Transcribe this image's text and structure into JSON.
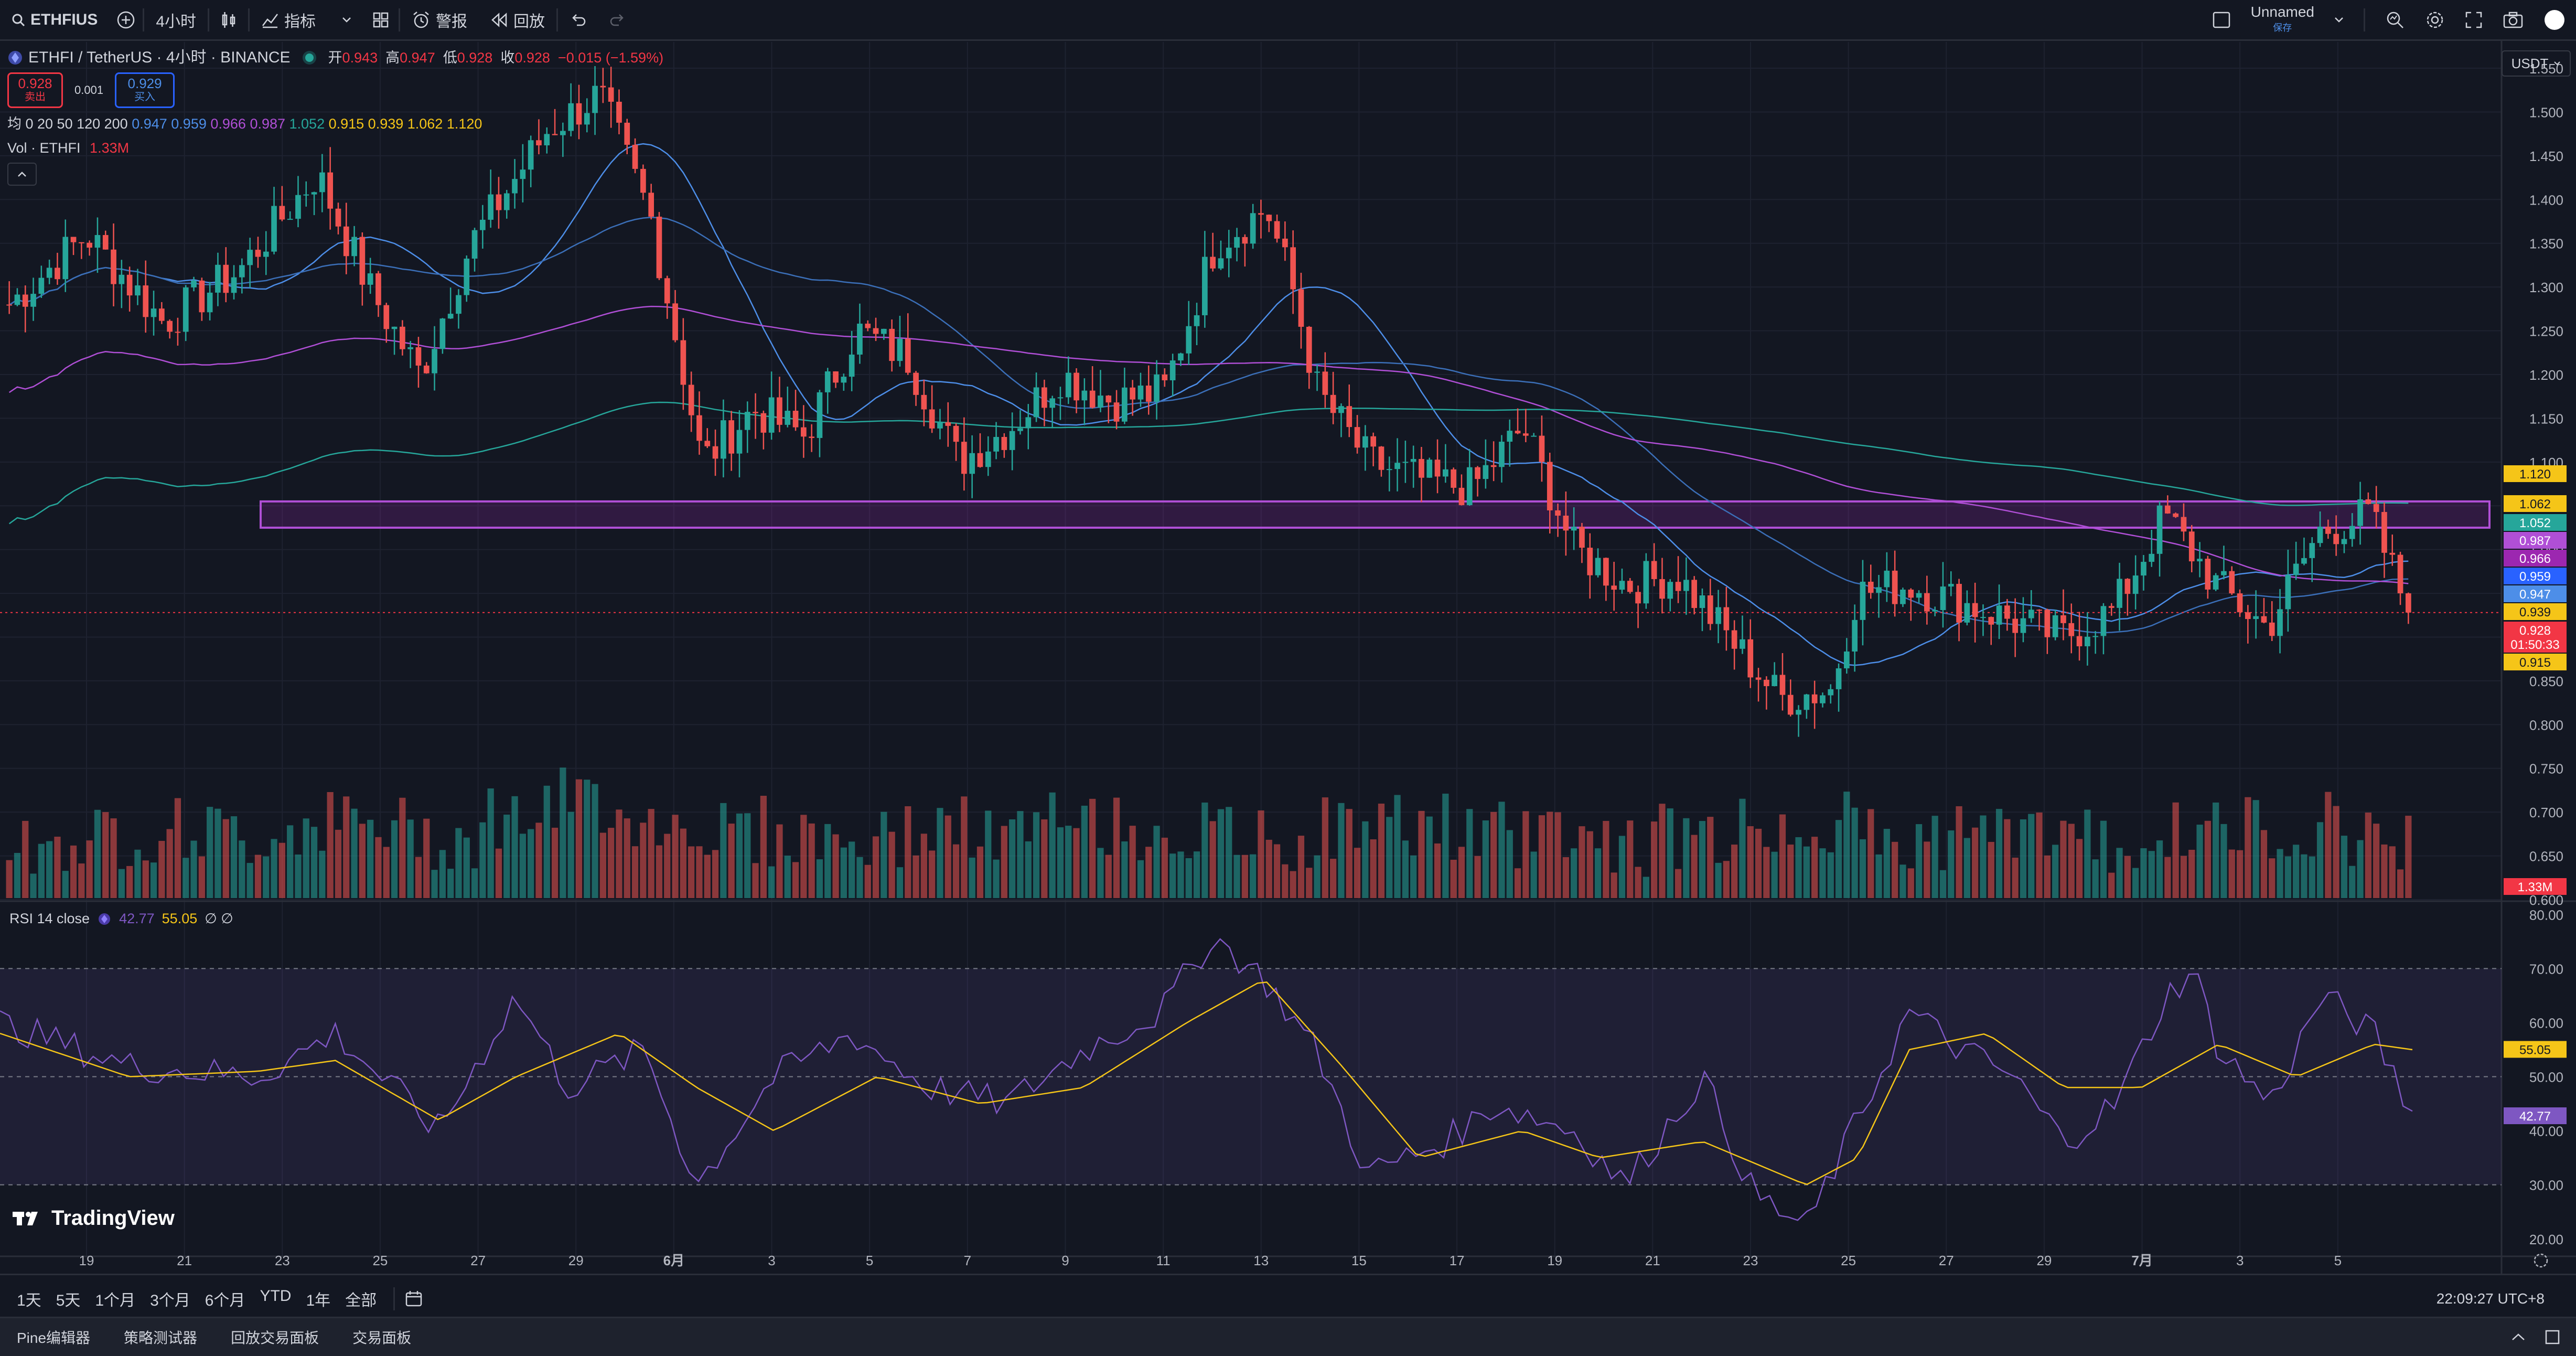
{
  "toolbar": {
    "symbol": "ETHFIUS",
    "interval": "4小时",
    "indicators_label": "指标",
    "alert_label": "警报",
    "replay_label": "回放",
    "layout_name": "Unnamed",
    "layout_sub": "保存"
  },
  "legend": {
    "title": "ETHFI / TetherUS · 4小时 · BINANCE",
    "open_label": "开",
    "open": "0.943",
    "high_label": "高",
    "high": "0.947",
    "low_label": "低",
    "low": "0.928",
    "close_label": "收",
    "close": "0.928",
    "change": "−0.015 (−1.59%)",
    "sell_price": "0.928",
    "sell_label": "卖出",
    "spread": "0.001",
    "buy_price": "0.929",
    "buy_label": "买入",
    "ma_label": "均 0 20 50 120 200",
    "ma_values": [
      "0.947",
      "0.959",
      "0.966",
      "0.987",
      "1.052",
      "0.915",
      "0.939",
      "1.062",
      "1.120"
    ],
    "ma_colors": [
      "#4d8ee8",
      "#4d8ee8",
      "#b04fd6",
      "#b04fd6",
      "#26a69a",
      "#f5c518",
      "#f5c518",
      "#f5c518",
      "#f5c518"
    ],
    "vol_label": "Vol · ETHFI",
    "vol_value": "1.33M"
  },
  "currency": "USDT",
  "rsi_legend": {
    "label": "RSI 14 close",
    "v1": "42.77",
    "v2": "55.05",
    "extra": "∅ ∅"
  },
  "watermark": "TradingView",
  "price_axis": {
    "ticks": [
      "1.550",
      "1.500",
      "1.450",
      "1.400",
      "1.350",
      "1.300",
      "1.250",
      "1.200",
      "1.150",
      "1.100",
      "1.050",
      "1.000",
      "0.950",
      "0.900",
      "0.850",
      "0.800",
      "0.750",
      "0.700",
      "0.650",
      "0.600"
    ],
    "tags": [
      {
        "text": "1.120",
        "bg": "#f5c518",
        "fg": "#131722"
      },
      {
        "text": "1.062",
        "bg": "#f5c518",
        "fg": "#131722"
      },
      {
        "text": "1.052",
        "bg": "#26a69a",
        "fg": "#ffffff"
      },
      {
        "text": "0.987",
        "bg": "#b04fd6",
        "fg": "#ffffff"
      },
      {
        "text": "0.966",
        "bg": "#9c27b0",
        "fg": "#ffffff"
      },
      {
        "text": "0.959",
        "bg": "#2962ff",
        "fg": "#ffffff"
      },
      {
        "text": "0.947",
        "bg": "#4d8ee8",
        "fg": "#ffffff"
      },
      {
        "text": "0.939",
        "bg": "#f5c518",
        "fg": "#131722"
      },
      {
        "text": "0.928",
        "bg": "#f23645",
        "fg": "#ffffff"
      },
      {
        "text": "01:50:33",
        "bg": "#f23645",
        "fg": "#ffffff"
      },
      {
        "text": "0.915",
        "bg": "#f5c518",
        "fg": "#131722"
      }
    ],
    "vol_tag": "1.33M"
  },
  "rsi_axis": {
    "ticks": [
      "80.00",
      "70.00",
      "60.00",
      "50.00",
      "40.00",
      "30.00",
      "20.00"
    ],
    "tag_yellow": "55.05",
    "tag_purple": "42.77"
  },
  "time_axis": [
    "19",
    "21",
    "23",
    "25",
    "27",
    "29",
    "6月",
    "3",
    "5",
    "7",
    "9",
    "11",
    "13",
    "15",
    "17",
    "19",
    "21",
    "23",
    "25",
    "27",
    "29",
    "7月",
    "3",
    "5"
  ],
  "ranges": [
    "1天",
    "5天",
    "1个月",
    "3个月",
    "6个月",
    "YTD",
    "1年",
    "全部"
  ],
  "clock": "22:09:27 UTC+8",
  "footer": [
    "Pine编辑器",
    "策略测试器",
    "回放交易面板",
    "交易面板"
  ],
  "chart_data": {
    "type": "candlestick",
    "title": "ETHFI / TetherUS · 4小时 · BINANCE",
    "xlabel": "",
    "ylabel": "",
    "ylim": [
      0.6,
      1.58
    ],
    "x_ticks": [
      "19",
      "21",
      "23",
      "25",
      "27",
      "29",
      "6月",
      "3",
      "5",
      "7",
      "9",
      "11",
      "13",
      "15",
      "17",
      "19",
      "21",
      "23",
      "25",
      "27",
      "29",
      "7月",
      "3",
      "5"
    ],
    "close_path": [
      [
        0,
        1.28
      ],
      [
        0.03,
        1.36
      ],
      [
        0.06,
        1.26
      ],
      [
        0.09,
        1.32
      ],
      [
        0.12,
        1.43
      ],
      [
        0.14,
        1.3
      ],
      [
        0.16,
        1.2
      ],
      [
        0.18,
        1.35
      ],
      [
        0.21,
        1.48
      ],
      [
        0.23,
        1.52
      ],
      [
        0.25,
        1.38
      ],
      [
        0.27,
        1.1
      ],
      [
        0.29,
        1.16
      ],
      [
        0.31,
        1.13
      ],
      [
        0.33,
        1.25
      ],
      [
        0.35,
        1.22
      ],
      [
        0.37,
        1.1
      ],
      [
        0.39,
        1.14
      ],
      [
        0.41,
        1.2
      ],
      [
        0.43,
        1.17
      ],
      [
        0.45,
        1.18
      ],
      [
        0.47,
        1.35
      ],
      [
        0.49,
        1.39
      ],
      [
        0.5,
        1.3
      ],
      [
        0.51,
        1.18
      ],
      [
        0.53,
        1.1
      ],
      [
        0.55,
        1.08
      ],
      [
        0.57,
        1.07
      ],
      [
        0.59,
        1.14
      ],
      [
        0.61,
        1.0
      ],
      [
        0.63,
        0.96
      ],
      [
        0.65,
        0.97
      ],
      [
        0.67,
        0.9
      ],
      [
        0.69,
        0.83
      ],
      [
        0.71,
        0.84
      ],
      [
        0.72,
        0.95
      ],
      [
        0.74,
        0.96
      ],
      [
        0.76,
        0.94
      ],
      [
        0.78,
        0.92
      ],
      [
        0.8,
        0.9
      ],
      [
        0.82,
        0.93
      ],
      [
        0.84,
        1.04
      ],
      [
        0.86,
        0.96
      ],
      [
        0.88,
        0.91
      ],
      [
        0.9,
        1.02
      ],
      [
        0.92,
        1.04
      ],
      [
        0.935,
        0.93
      ]
    ],
    "volume_profile": [
      0.3,
      0.4,
      0.5,
      0.4,
      0.6,
      0.5,
      0.4,
      0.7,
      0.9,
      0.6,
      0.5,
      0.4,
      0.3,
      0.5,
      0.4,
      0.6,
      0.5,
      0.4,
      0.3,
      0.5,
      0.6,
      0.4,
      0.5,
      0.3,
      0.4,
      0.5,
      0.6,
      0.3,
      0.4,
      0.5,
      0.3,
      0.4,
      0.5,
      0.6,
      0.4
    ],
    "zone": {
      "price_top": 1.055,
      "price_bottom": 1.025,
      "color": "#9c27b0"
    },
    "last_price": 0.928,
    "rsi": {
      "ylim": [
        20,
        80
      ],
      "bands": [
        30,
        50,
        70
      ],
      "rsi_path": [
        [
          0,
          60
        ],
        [
          0.05,
          52
        ],
        [
          0.1,
          50
        ],
        [
          0.13,
          58
        ],
        [
          0.17,
          40
        ],
        [
          0.2,
          65
        ],
        [
          0.22,
          48
        ],
        [
          0.25,
          55
        ],
        [
          0.27,
          30
        ],
        [
          0.3,
          50
        ],
        [
          0.33,
          58
        ],
        [
          0.36,
          48
        ],
        [
          0.39,
          45
        ],
        [
          0.42,
          55
        ],
        [
          0.45,
          62
        ],
        [
          0.47,
          76
        ],
        [
          0.49,
          68
        ],
        [
          0.51,
          55
        ],
        [
          0.53,
          32
        ],
        [
          0.56,
          38
        ],
        [
          0.58,
          45
        ],
        [
          0.61,
          40
        ],
        [
          0.63,
          30
        ],
        [
          0.66,
          50
        ],
        [
          0.68,
          28
        ],
        [
          0.7,
          22
        ],
        [
          0.72,
          42
        ],
        [
          0.74,
          62
        ],
        [
          0.76,
          55
        ],
        [
          0.78,
          50
        ],
        [
          0.8,
          38
        ],
        [
          0.82,
          45
        ],
        [
          0.84,
          65
        ],
        [
          0.85,
          70
        ],
        [
          0.86,
          55
        ],
        [
          0.88,
          45
        ],
        [
          0.9,
          65
        ],
        [
          0.92,
          58
        ],
        [
          0.935,
          43
        ]
      ],
      "ma_path": [
        [
          0,
          58
        ],
        [
          0.05,
          50
        ],
        [
          0.1,
          51
        ],
        [
          0.13,
          53
        ],
        [
          0.17,
          42
        ],
        [
          0.2,
          50
        ],
        [
          0.24,
          58
        ],
        [
          0.27,
          48
        ],
        [
          0.3,
          40
        ],
        [
          0.34,
          50
        ],
        [
          0.38,
          45
        ],
        [
          0.42,
          48
        ],
        [
          0.46,
          60
        ],
        [
          0.49,
          68
        ],
        [
          0.52,
          52
        ],
        [
          0.55,
          35
        ],
        [
          0.59,
          40
        ],
        [
          0.62,
          35
        ],
        [
          0.66,
          38
        ],
        [
          0.7,
          30
        ],
        [
          0.72,
          35
        ],
        [
          0.74,
          55
        ],
        [
          0.77,
          58
        ],
        [
          0.8,
          48
        ],
        [
          0.83,
          48
        ],
        [
          0.86,
          56
        ],
        [
          0.89,
          50
        ],
        [
          0.92,
          56
        ],
        [
          0.935,
          55
        ]
      ],
      "v1": 42.77,
      "v2": 55.05
    }
  }
}
